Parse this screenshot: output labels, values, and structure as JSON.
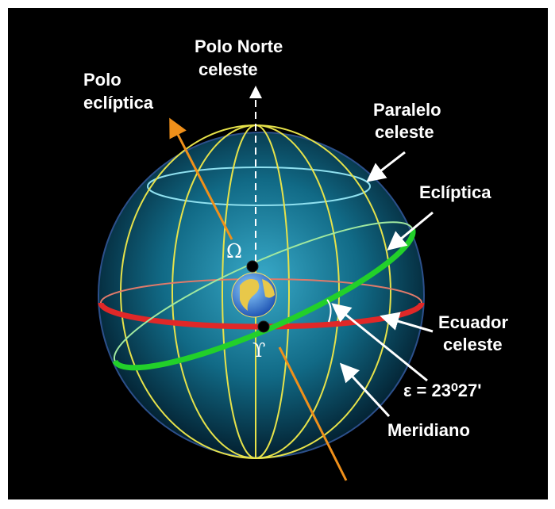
{
  "labels": {
    "north_pole": [
      "Polo Norte",
      "celeste"
    ],
    "ecliptic_pole": [
      "Polo",
      "eclíptica"
    ],
    "celestial_parallel": [
      "Paralelo",
      "celeste"
    ],
    "ecliptic": "Eclíptica",
    "celestial_equator": [
      "Ecuador",
      "celeste"
    ],
    "obliquity": "ε = 23⁰27'",
    "meridian": "Meridiano",
    "ascending_node": "Ω",
    "vernal_point": "ϒ"
  }
}
